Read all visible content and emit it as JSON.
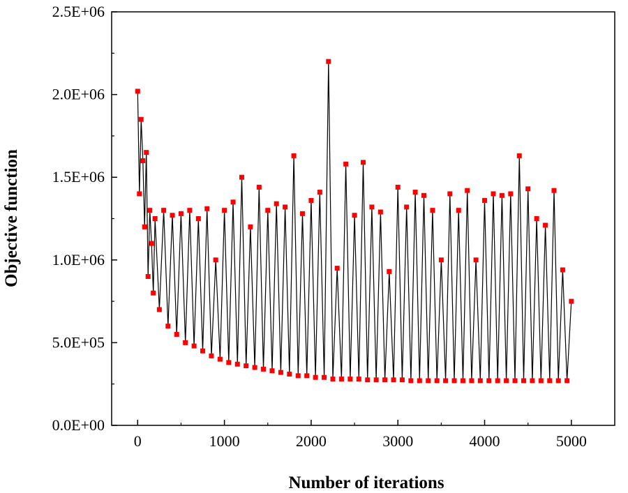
{
  "chart_data": {
    "type": "scatter",
    "title": "",
    "xlabel": "Number of iterations",
    "ylabel": "Objective function",
    "xlim": [
      -300,
      5500
    ],
    "ylim": [
      0,
      2500000
    ],
    "x_ticks": [
      0,
      1000,
      2000,
      3000,
      4000,
      5000
    ],
    "x_tick_labels": [
      "0",
      "1000",
      "2000",
      "3000",
      "4000",
      "5000"
    ],
    "y_ticks": [
      0,
      500000,
      1000000,
      1500000,
      2000000,
      2500000
    ],
    "y_tick_labels": [
      "0.0E+00",
      "5.0E+05",
      "1.0E+06",
      "1.5E+06",
      "2.0E+06",
      "2.5E+06"
    ],
    "grid": false,
    "legend": "none",
    "line_color": "#000000",
    "marker_color": "#ff0000",
    "marker_shape": "square",
    "series": [
      {
        "x": [
          0,
          20,
          40,
          60,
          80,
          100,
          120,
          140,
          160,
          180,
          200,
          250,
          300,
          350,
          400,
          450,
          500,
          550,
          600,
          650,
          700,
          750,
          800,
          850,
          900,
          950,
          1000,
          1050,
          1100,
          1150,
          1200,
          1250,
          1300,
          1350,
          1400,
          1450,
          1500,
          1550,
          1600,
          1650,
          1700,
          1750,
          1800,
          1850,
          1900,
          1950,
          2000,
          2050,
          2100,
          2150,
          2200,
          2250,
          2300,
          2350,
          2400,
          2450,
          2500,
          2550,
          2600,
          2650,
          2700,
          2750,
          2800,
          2850,
          2900,
          2950,
          3000,
          3050,
          3100,
          3150,
          3200,
          3250,
          3300,
          3350,
          3400,
          3450,
          3500,
          3550,
          3600,
          3650,
          3700,
          3750,
          3800,
          3850,
          3900,
          3950,
          4000,
          4050,
          4100,
          4150,
          4200,
          4250,
          4300,
          4350,
          4400,
          4450,
          4500,
          4550,
          4600,
          4650,
          4700,
          4750,
          4800,
          4850,
          4900,
          4950,
          5000
        ],
        "y": [
          2020000,
          1400000,
          1850000,
          1600000,
          1200000,
          1650000,
          900000,
          1300000,
          1100000,
          800000,
          1250000,
          700000,
          1300000,
          600000,
          1270000,
          550000,
          1280000,
          500000,
          1300000,
          480000,
          1250000,
          450000,
          1310000,
          420000,
          1000000,
          400000,
          1300000,
          380000,
          1350000,
          370000,
          1500000,
          360000,
          1200000,
          350000,
          1440000,
          340000,
          1300000,
          330000,
          1340000,
          320000,
          1320000,
          310000,
          1630000,
          300000,
          1280000,
          300000,
          1360000,
          290000,
          1410000,
          290000,
          2200000,
          280000,
          950000,
          280000,
          1580000,
          280000,
          1270000,
          280000,
          1590000,
          275000,
          1320000,
          275000,
          1290000,
          275000,
          930000,
          275000,
          1440000,
          275000,
          1320000,
          270000,
          1410000,
          270000,
          1390000,
          270000,
          1300000,
          270000,
          1000000,
          270000,
          1400000,
          270000,
          1300000,
          270000,
          1420000,
          270000,
          1000000,
          270000,
          1360000,
          270000,
          1400000,
          270000,
          1390000,
          270000,
          1400000,
          270000,
          1630000,
          270000,
          1430000,
          270000,
          1250000,
          270000,
          1210000,
          270000,
          1420000,
          270000,
          940000,
          270000,
          750000
        ]
      }
    ]
  }
}
